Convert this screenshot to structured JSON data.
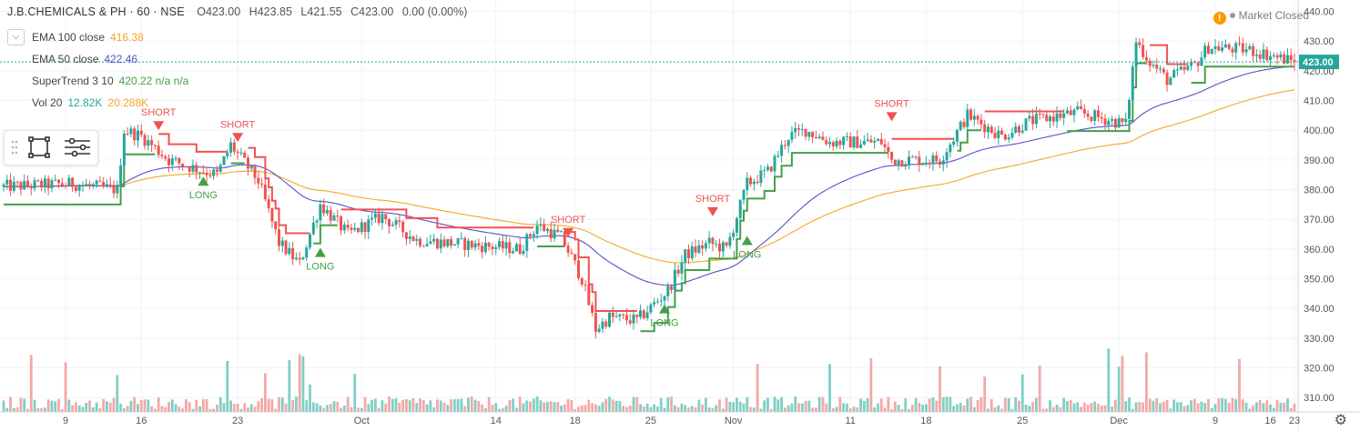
{
  "header": {
    "symbol": "J.B.CHEMICALS & PH · 60 · NSE",
    "open": "O423.00",
    "high": "H423.85",
    "low": "L421.55",
    "close": "C423.00",
    "change": "0.00 (0.00%)"
  },
  "indicators": [
    {
      "name": "EMA 100 close",
      "value": "416.38",
      "color": "#f5a623"
    },
    {
      "name": "EMA 50 close",
      "value": "422.46",
      "color": "#5b4fc7"
    },
    {
      "name": "SuperTrend 3 10",
      "value": "420.22  n/a  n/a",
      "color": "#43a047"
    },
    {
      "name": "Vol 20",
      "value": "12.82K",
      "value2": "20.288K",
      "color": "#26a69a",
      "color2": "#f5a623"
    }
  ],
  "market_status": {
    "label": "Market Closed",
    "icon": "!"
  },
  "price_label": "423.00",
  "colors": {
    "up": "#26a69a",
    "down": "#ef5350",
    "ema100": "#f5a623",
    "ema50": "#5b4fc7",
    "st_up": "#43a047",
    "st_down": "#ef5350",
    "vol_up": "#7fcfc4",
    "vol_down": "#f4a8a6"
  },
  "chart_data": {
    "type": "candlestick",
    "title": "J.B.CHEMICALS & PH · 60 · NSE",
    "x_ticks": [
      "9",
      "16",
      "23",
      "Oct",
      "14",
      "18",
      "25",
      "Nov",
      "11",
      "18",
      "25",
      "Dec",
      "9",
      "16",
      "23"
    ],
    "y_ticks": [
      310,
      320,
      330,
      340,
      350,
      360,
      370,
      380,
      390,
      400,
      410,
      420,
      430,
      440
    ],
    "ylim": [
      307,
      442
    ],
    "last_price": 423.0,
    "ema100_close": 416.38,
    "ema50_close": 422.46,
    "supertrend": 420.22,
    "volume": 12820,
    "volume_ma20": 20288,
    "price_path": [
      {
        "i": 0,
        "p": 381
      },
      {
        "i": 20,
        "p": 382
      },
      {
        "i": 33,
        "p": 380
      },
      {
        "i": 35,
        "p": 400
      },
      {
        "i": 40,
        "p": 398
      },
      {
        "i": 48,
        "p": 390
      },
      {
        "i": 56,
        "p": 387
      },
      {
        "i": 62,
        "p": 385
      },
      {
        "i": 66,
        "p": 395
      },
      {
        "i": 74,
        "p": 383
      },
      {
        "i": 80,
        "p": 362
      },
      {
        "i": 86,
        "p": 355
      },
      {
        "i": 92,
        "p": 375
      },
      {
        "i": 100,
        "p": 365
      },
      {
        "i": 110,
        "p": 371
      },
      {
        "i": 120,
        "p": 363
      },
      {
        "i": 140,
        "p": 361
      },
      {
        "i": 150,
        "p": 360
      },
      {
        "i": 155,
        "p": 368
      },
      {
        "i": 162,
        "p": 364
      },
      {
        "i": 168,
        "p": 350
      },
      {
        "i": 172,
        "p": 333
      },
      {
        "i": 176,
        "p": 337
      },
      {
        "i": 184,
        "p": 336
      },
      {
        "i": 193,
        "p": 346
      },
      {
        "i": 198,
        "p": 358
      },
      {
        "i": 205,
        "p": 362
      },
      {
        "i": 210,
        "p": 360
      },
      {
        "i": 216,
        "p": 382
      },
      {
        "i": 222,
        "p": 386
      },
      {
        "i": 228,
        "p": 398
      },
      {
        "i": 233,
        "p": 400
      },
      {
        "i": 240,
        "p": 396
      },
      {
        "i": 255,
        "p": 396
      },
      {
        "i": 258,
        "p": 390
      },
      {
        "i": 265,
        "p": 390
      },
      {
        "i": 272,
        "p": 390
      },
      {
        "i": 280,
        "p": 405
      },
      {
        "i": 290,
        "p": 398
      },
      {
        "i": 298,
        "p": 403
      },
      {
        "i": 312,
        "p": 406
      },
      {
        "i": 326,
        "p": 402
      },
      {
        "i": 329,
        "p": 430
      },
      {
        "i": 333,
        "p": 423
      },
      {
        "i": 338,
        "p": 417
      },
      {
        "i": 346,
        "p": 422
      },
      {
        "i": 350,
        "p": 428
      },
      {
        "i": 362,
        "p": 427
      },
      {
        "i": 375,
        "p": 423
      }
    ],
    "signals": [
      {
        "type": "SHORT",
        "i": 45,
        "p": 400
      },
      {
        "type": "LONG",
        "i": 58,
        "p": 385
      },
      {
        "type": "SHORT",
        "i": 68,
        "p": 396
      },
      {
        "type": "LONG",
        "i": 92,
        "p": 361
      },
      {
        "type": "SHORT",
        "i": 164,
        "p": 364
      },
      {
        "type": "LONG",
        "i": 192,
        "p": 342
      },
      {
        "type": "SHORT",
        "i": 206,
        "p": 371
      },
      {
        "type": "LONG",
        "i": 216,
        "p": 365
      },
      {
        "type": "SHORT",
        "i": 258,
        "p": 403
      }
    ],
    "signal_labels": {
      "long": "LONG",
      "short": "SHORT"
    }
  }
}
